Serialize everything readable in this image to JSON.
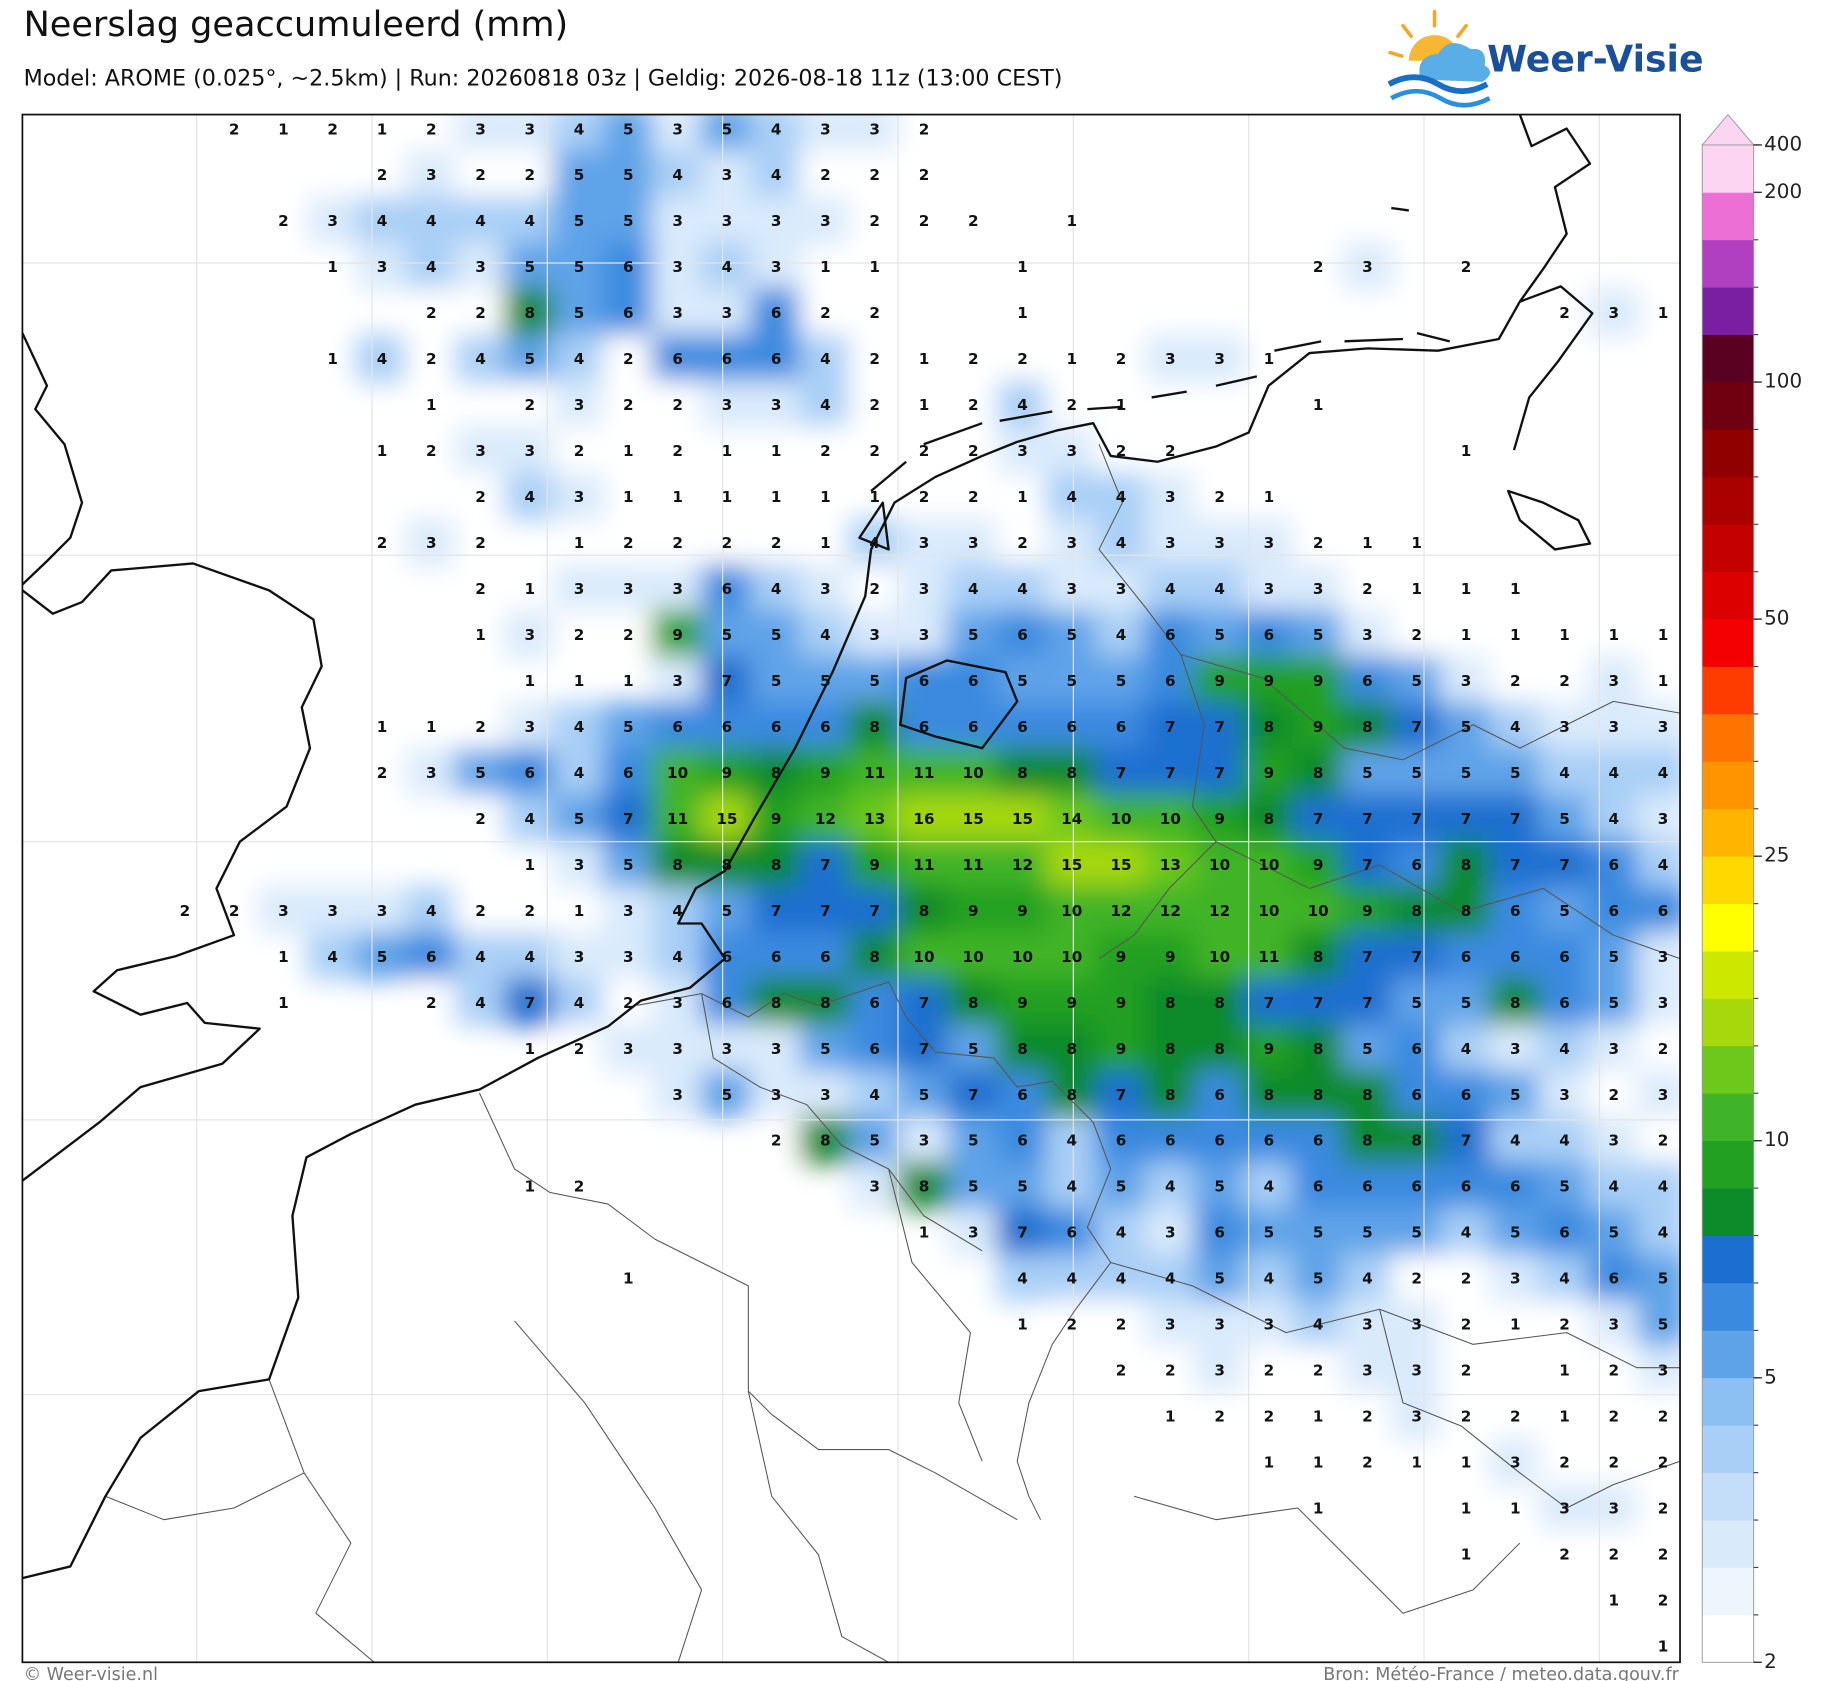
{
  "header": {
    "title": "Neerslag geaccumuleerd (mm)",
    "subtitle": "Model: AROME (0.025°, ~2.5km)  |  Run: 20260818 03z  |  Geldig: 2026-08-18 11z (13:00 CEST)",
    "logo": "Weer-Visie"
  },
  "map": {
    "rows": [
      [
        null,
        2,
        1,
        2,
        1,
        2,
        3,
        3,
        4,
        5,
        3,
        5,
        4,
        3,
        3,
        2,
        null,
        null,
        null,
        null,
        null,
        null,
        null,
        null,
        null,
        null,
        null,
        null,
        null,
        null,
        null
      ],
      [
        null,
        null,
        null,
        null,
        2,
        3,
        2,
        2,
        5,
        5,
        4,
        3,
        4,
        2,
        2,
        2,
        null,
        null,
        null,
        null,
        null,
        null,
        null,
        null,
        null,
        null,
        null,
        null,
        null,
        null,
        null
      ],
      [
        null,
        null,
        2,
        3,
        4,
        4,
        4,
        4,
        5,
        5,
        3,
        3,
        3,
        3,
        2,
        2,
        2,
        null,
        1,
        null,
        null,
        null,
        null,
        null,
        null,
        null,
        null,
        null,
        null,
        null,
        null
      ],
      [
        null,
        null,
        null,
        1,
        3,
        4,
        3,
        5,
        5,
        6,
        3,
        4,
        3,
        1,
        1,
        null,
        null,
        1,
        null,
        null,
        null,
        null,
        null,
        2,
        3,
        null,
        2,
        null,
        null,
        null,
        null
      ],
      [
        null,
        null,
        null,
        null,
        null,
        2,
        2,
        8,
        5,
        6,
        3,
        3,
        6,
        2,
        2,
        null,
        null,
        1,
        null,
        null,
        null,
        null,
        null,
        null,
        null,
        null,
        null,
        null,
        2,
        3,
        1
      ],
      [
        null,
        null,
        null,
        1,
        4,
        2,
        4,
        5,
        4,
        2,
        6,
        6,
        6,
        4,
        2,
        1,
        2,
        2,
        1,
        2,
        3,
        3,
        1,
        null,
        null,
        null,
        null,
        null,
        null,
        null,
        null
      ],
      [
        null,
        null,
        null,
        null,
        null,
        1,
        null,
        2,
        3,
        2,
        2,
        3,
        3,
        4,
        2,
        1,
        2,
        4,
        2,
        1,
        null,
        null,
        null,
        1,
        null,
        null,
        null,
        null,
        null,
        null,
        null
      ],
      [
        null,
        null,
        null,
        null,
        1,
        2,
        3,
        3,
        2,
        1,
        2,
        1,
        1,
        2,
        2,
        2,
        2,
        3,
        3,
        2,
        2,
        null,
        null,
        null,
        null,
        null,
        1,
        null,
        null,
        null,
        null
      ],
      [
        null,
        null,
        null,
        null,
        null,
        null,
        2,
        4,
        3,
        1,
        1,
        1,
        1,
        1,
        1,
        2,
        2,
        1,
        4,
        4,
        3,
        2,
        1,
        null,
        null,
        null,
        null,
        null,
        null,
        null,
        null
      ],
      [
        null,
        null,
        null,
        null,
        2,
        3,
        2,
        null,
        1,
        2,
        2,
        2,
        2,
        1,
        4,
        3,
        3,
        2,
        3,
        4,
        3,
        3,
        3,
        2,
        1,
        1,
        null,
        null,
        null,
        null,
        null
      ],
      [
        null,
        null,
        null,
        null,
        null,
        null,
        2,
        1,
        3,
        3,
        3,
        6,
        4,
        3,
        2,
        3,
        4,
        4,
        3,
        3,
        4,
        4,
        3,
        3,
        2,
        1,
        1,
        1,
        null,
        null,
        null
      ],
      [
        null,
        null,
        null,
        null,
        null,
        null,
        1,
        3,
        2,
        2,
        9,
        5,
        5,
        4,
        3,
        3,
        5,
        6,
        5,
        4,
        6,
        5,
        6,
        5,
        3,
        2,
        1,
        1,
        1,
        1,
        1
      ],
      [
        null,
        null,
        null,
        null,
        null,
        null,
        null,
        1,
        1,
        1,
        3,
        7,
        5,
        5,
        5,
        6,
        6,
        5,
        5,
        5,
        6,
        9,
        9,
        9,
        6,
        5,
        3,
        2,
        2,
        3,
        1
      ],
      [
        null,
        null,
        null,
        null,
        1,
        1,
        2,
        3,
        4,
        5,
        6,
        6,
        6,
        6,
        8,
        6,
        6,
        6,
        6,
        6,
        7,
        7,
        8,
        9,
        8,
        7,
        5,
        4,
        3,
        3,
        3
      ],
      [
        null,
        null,
        null,
        null,
        2,
        3,
        5,
        6,
        4,
        6,
        10,
        9,
        8,
        9,
        11,
        11,
        10,
        8,
        8,
        7,
        7,
        7,
        9,
        8,
        5,
        5,
        5,
        5,
        4,
        4,
        4
      ],
      [
        null,
        null,
        null,
        null,
        null,
        null,
        2,
        4,
        5,
        7,
        11,
        15,
        9,
        12,
        13,
        16,
        15,
        15,
        14,
        10,
        10,
        9,
        8,
        7,
        7,
        7,
        7,
        7,
        5,
        4,
        3
      ],
      [
        null,
        null,
        null,
        null,
        null,
        null,
        null,
        1,
        3,
        5,
        8,
        8,
        8,
        7,
        9,
        11,
        11,
        12,
        15,
        15,
        13,
        10,
        10,
        9,
        7,
        6,
        8,
        7,
        7,
        6,
        4
      ],
      [
        2,
        2,
        3,
        3,
        3,
        4,
        2,
        2,
        1,
        3,
        4,
        5,
        7,
        7,
        7,
        8,
        9,
        9,
        10,
        12,
        12,
        12,
        10,
        10,
        9,
        8,
        8,
        6,
        5,
        6,
        6
      ],
      [
        null,
        null,
        1,
        4,
        5,
        6,
        4,
        4,
        3,
        3,
        4,
        6,
        6,
        6,
        8,
        10,
        10,
        10,
        10,
        9,
        9,
        10,
        11,
        8,
        7,
        7,
        6,
        6,
        6,
        5,
        3
      ],
      [
        null,
        null,
        1,
        null,
        null,
        2,
        4,
        7,
        4,
        2,
        3,
        6,
        8,
        8,
        6,
        7,
        8,
        9,
        9,
        9,
        8,
        8,
        7,
        7,
        7,
        5,
        5,
        8,
        6,
        5,
        3
      ],
      [
        null,
        null,
        null,
        null,
        null,
        null,
        null,
        1,
        2,
        3,
        3,
        3,
        3,
        5,
        6,
        7,
        5,
        8,
        8,
        9,
        8,
        8,
        9,
        8,
        5,
        6,
        4,
        3,
        4,
        3,
        2
      ],
      [
        null,
        null,
        null,
        null,
        null,
        null,
        null,
        null,
        null,
        null,
        3,
        5,
        3,
        3,
        4,
        5,
        7,
        6,
        8,
        7,
        8,
        6,
        8,
        8,
        8,
        6,
        6,
        5,
        3,
        2,
        3
      ],
      [
        null,
        null,
        null,
        null,
        null,
        null,
        null,
        null,
        null,
        null,
        null,
        null,
        2,
        8,
        5,
        3,
        5,
        6,
        4,
        6,
        6,
        6,
        6,
        6,
        8,
        8,
        7,
        4,
        4,
        3,
        2
      ],
      [
        null,
        null,
        null,
        null,
        null,
        null,
        null,
        1,
        2,
        null,
        null,
        null,
        null,
        null,
        3,
        8,
        5,
        5,
        4,
        5,
        4,
        5,
        4,
        6,
        6,
        6,
        6,
        6,
        5,
        4,
        4
      ],
      [
        null,
        null,
        null,
        null,
        null,
        null,
        null,
        null,
        null,
        null,
        null,
        null,
        null,
        null,
        null,
        1,
        3,
        7,
        6,
        4,
        3,
        6,
        5,
        5,
        5,
        5,
        4,
        5,
        6,
        5,
        4
      ],
      [
        null,
        null,
        null,
        null,
        null,
        null,
        null,
        null,
        null,
        1,
        null,
        null,
        null,
        null,
        null,
        null,
        null,
        4,
        4,
        4,
        4,
        5,
        4,
        5,
        4,
        2,
        2,
        3,
        4,
        6,
        5
      ],
      [
        null,
        null,
        null,
        null,
        null,
        null,
        null,
        null,
        null,
        null,
        null,
        null,
        null,
        null,
        null,
        null,
        null,
        1,
        2,
        2,
        3,
        3,
        3,
        4,
        3,
        3,
        2,
        1,
        2,
        3,
        5
      ],
      [
        null,
        null,
        null,
        null,
        null,
        null,
        null,
        null,
        null,
        null,
        null,
        null,
        null,
        null,
        null,
        null,
        null,
        null,
        null,
        2,
        2,
        3,
        2,
        2,
        3,
        3,
        2,
        null,
        1,
        2,
        3
      ],
      [
        null,
        null,
        null,
        null,
        null,
        null,
        null,
        null,
        null,
        null,
        null,
        null,
        null,
        null,
        null,
        null,
        null,
        null,
        null,
        null,
        1,
        2,
        2,
        1,
        2,
        3,
        2,
        2,
        1,
        2,
        2
      ],
      [
        null,
        null,
        null,
        null,
        null,
        null,
        null,
        null,
        null,
        null,
        null,
        null,
        null,
        null,
        null,
        null,
        null,
        null,
        null,
        null,
        null,
        null,
        1,
        1,
        2,
        1,
        1,
        3,
        2,
        2,
        2
      ],
      [
        null,
        null,
        null,
        null,
        null,
        null,
        null,
        null,
        null,
        null,
        null,
        null,
        null,
        null,
        null,
        null,
        null,
        null,
        null,
        null,
        null,
        null,
        null,
        1,
        null,
        null,
        1,
        1,
        3,
        3,
        2
      ],
      [
        null,
        null,
        null,
        null,
        null,
        null,
        null,
        null,
        null,
        null,
        null,
        null,
        null,
        null,
        null,
        null,
        null,
        null,
        null,
        null,
        null,
        null,
        null,
        null,
        null,
        null,
        1,
        null,
        2,
        2,
        2
      ],
      [
        null,
        null,
        null,
        null,
        null,
        null,
        null,
        null,
        null,
        null,
        null,
        null,
        null,
        null,
        null,
        null,
        null,
        null,
        null,
        null,
        null,
        null,
        null,
        null,
        null,
        null,
        null,
        null,
        null,
        1,
        2
      ],
      [
        null,
        null,
        null,
        null,
        null,
        null,
        null,
        null,
        null,
        null,
        null,
        null,
        null,
        null,
        null,
        null,
        null,
        null,
        null,
        null,
        null,
        null,
        null,
        null,
        null,
        null,
        null,
        null,
        null,
        null,
        1
      ]
    ]
  },
  "colorbar": {
    "levels": [
      2,
      2.5,
      3,
      3.5,
      4,
      4.5,
      5,
      6,
      7,
      8,
      9,
      10,
      12.5,
      15,
      17.5,
      20,
      22.5,
      25,
      30,
      35,
      40,
      45,
      50,
      60,
      70,
      80,
      90,
      100,
      125,
      150,
      175,
      200,
      400
    ],
    "colors": [
      "#ffffff",
      "#eef5fd",
      "#d9eafb",
      "#c4defa",
      "#a9cff6",
      "#8cc0f2",
      "#5ea3e8",
      "#3a8ae0",
      "#1a6fd0",
      "#0d8a2a",
      "#22a022",
      "#40b428",
      "#6cc81a",
      "#a6d80c",
      "#cde800",
      "#ffff00",
      "#ffd800",
      "#ffb400",
      "#ff9400",
      "#ff7300",
      "#ff3c00",
      "#f50000",
      "#dd0000",
      "#c40000",
      "#aa0000",
      "#900000",
      "#700010",
      "#5a0020",
      "#7b1fa2",
      "#b040c0",
      "#ec6fd5",
      "#fcd5f2"
    ],
    "ticks": [
      2,
      5,
      10,
      25,
      50,
      100,
      200,
      400
    ]
  },
  "footer": {
    "left": "© Weer-visie.nl",
    "right": "Bron: Météo-France / meteo.data.gouv.fr"
  }
}
